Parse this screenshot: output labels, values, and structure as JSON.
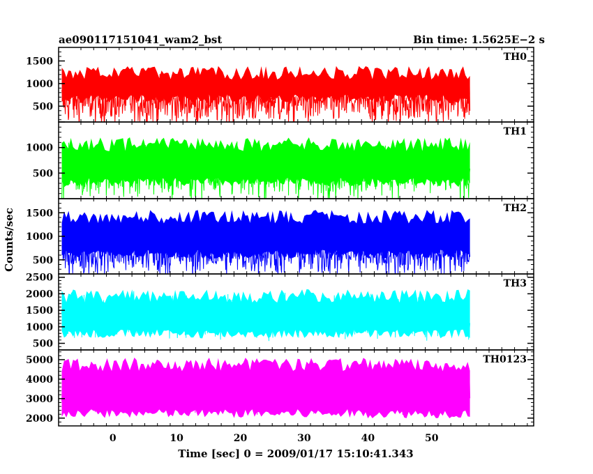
{
  "chart_data": {
    "type": "line",
    "title_left": "ae090117151041_wam2_bst",
    "title_right": "Bin time: 1.5625E−2 s",
    "xlabel": "Time [sec] 0 = 2009/01/17 15:10:41.343",
    "ylabel": "Counts/sec",
    "xlim": [
      -8.5,
      66
    ],
    "x_ticks": [
      0,
      10,
      20,
      30,
      40,
      50
    ],
    "x_range_data": [
      -8,
      56
    ],
    "grid": false,
    "panels": [
      {
        "name": "TH0",
        "color": "#ff0000",
        "ylim": [
          150,
          1800
        ],
        "y_ticks": [
          500,
          1000,
          1500
        ],
        "y_ticks_labeled": [
          500,
          1000,
          1500
        ],
        "mean": 600,
        "spread": 0.3,
        "fill_low": 0.25,
        "fill_high": 0.75
      },
      {
        "name": "TH1",
        "color": "#00ff00",
        "ylim": [
          0,
          1500
        ],
        "y_ticks": [
          500,
          1000,
          1500
        ],
        "y_ticks_labeled": [
          500,
          1000
        ],
        "mean": 500,
        "spread": 0.3,
        "fill_low": 0.15,
        "fill_high": 0.8
      },
      {
        "name": "TH2",
        "color": "#0000ff",
        "ylim": [
          200,
          1800
        ],
        "y_ticks": [
          500,
          1000,
          1500
        ],
        "y_ticks_labeled": [
          500,
          1000,
          1500
        ],
        "mean": 650,
        "spread": 0.3,
        "fill_low": 0.2,
        "fill_high": 0.85
      },
      {
        "name": "TH3",
        "color": "#00ffff",
        "ylim": [
          300,
          2600
        ],
        "y_ticks": [
          500,
          1000,
          1500,
          2000,
          2500
        ],
        "y_ticks_labeled": [
          500,
          1000,
          1500,
          2000,
          2500
        ],
        "mean": 1300,
        "spread": 0.25,
        "fill_low": 0.15,
        "fill_high": 0.8
      },
      {
        "name": "TH0123",
        "color": "#ff00ff",
        "ylim": [
          1600,
          5500
        ],
        "y_ticks": [
          2000,
          3000,
          4000,
          5000
        ],
        "y_ticks_labeled": [
          2000,
          3000,
          4000,
          5000
        ],
        "mean": 3200,
        "spread": 0.2,
        "fill_low": 0.1,
        "fill_high": 0.9
      }
    ]
  }
}
